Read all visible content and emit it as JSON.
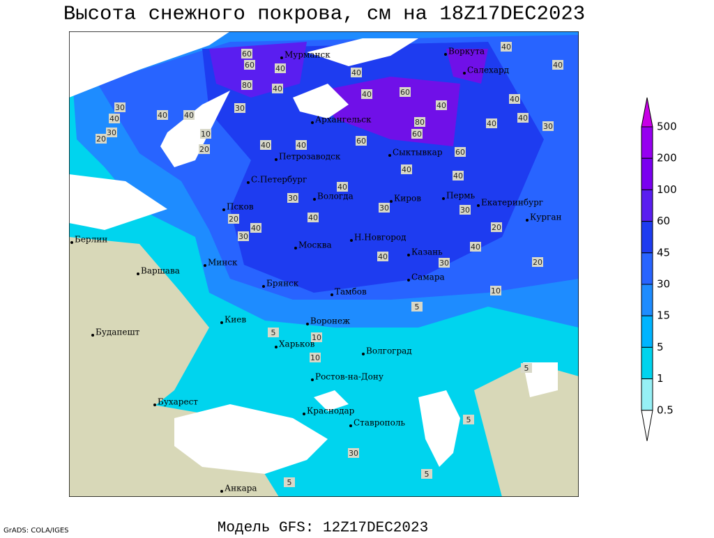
{
  "title": "Высота снежного покрова, см на 18Z17DEC2023",
  "footer": {
    "model": "Модель GFS: 12Z17DEC2023",
    "credit": "GrADS: COLA/IGES"
  },
  "cities": [
    "Мурманск",
    "Воркута",
    "Салехард",
    "Архангельск",
    "Сыктывкар",
    "Петрозаводск",
    "С.Петербург",
    "Вологда",
    "Киров",
    "Пермь",
    "Екатеринбург",
    "Курган",
    "Псков",
    "Берлин",
    "Н.Новгород",
    "Москва",
    "Казань",
    "Минск",
    "Варшава",
    "Самара",
    "Брянск",
    "Тамбов",
    "Киев",
    "Воронеж",
    "Будапешт",
    "Харьков",
    "Волгоград",
    "Ростов-на-Дону",
    "Бухарест",
    "Краснодар",
    "Ставрополь",
    "Анкара"
  ],
  "contour_labels": [
    60,
    40,
    60,
    80,
    40,
    30,
    30,
    40,
    40,
    40,
    30,
    20,
    10,
    20,
    40,
    40,
    40,
    40,
    60,
    40,
    80,
    60,
    60,
    60,
    40,
    40,
    40,
    40,
    40,
    30,
    40,
    40,
    40,
    30,
    30,
    30,
    40,
    40,
    20,
    30,
    20,
    40,
    20,
    30,
    40,
    10,
    5,
    5,
    10,
    10,
    5,
    5,
    5,
    5,
    30
  ],
  "legend": {
    "levels": [
      500,
      200,
      100,
      60,
      45,
      30,
      15,
      5,
      1,
      0.5
    ]
  }
}
